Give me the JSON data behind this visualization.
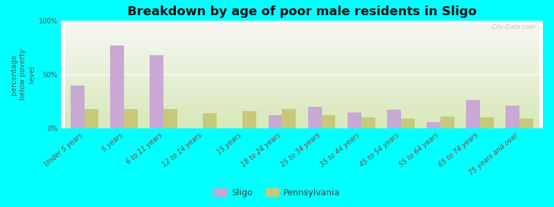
{
  "title": "Breakdown by age of poor male residents in Sligo",
  "ylabel": "percentage\nbelow poverty\nlevel",
  "categories": [
    "Under 5 years",
    "5 years",
    "6 to 11 years",
    "12 to 14 years",
    "15 years",
    "18 to 24 years",
    "25 to 34 years",
    "35 to 44 years",
    "45 to 54 years",
    "55 to 64 years",
    "65 to 74 years",
    "75 years and over"
  ],
  "sligo_values": [
    40,
    77,
    68,
    0,
    0,
    12,
    20,
    15,
    17,
    6,
    26,
    21
  ],
  "pennsylvania_values": [
    18,
    18,
    18,
    14,
    16,
    18,
    12,
    10,
    9,
    11,
    10,
    9
  ],
  "sligo_color": "#c9a8d4",
  "pennsylvania_color": "#c8c87a",
  "background_color": "#00ffff",
  "plot_bg_top": "#f5f5f0",
  "plot_bg_bottom": "#ddeabb",
  "ylim": [
    0,
    100
  ],
  "bar_width": 0.35,
  "title_fontsize": 13,
  "axis_label_fontsize": 7.5,
  "tick_fontsize": 7,
  "legend_fontsize": 9,
  "watermark": "City-Data.com"
}
